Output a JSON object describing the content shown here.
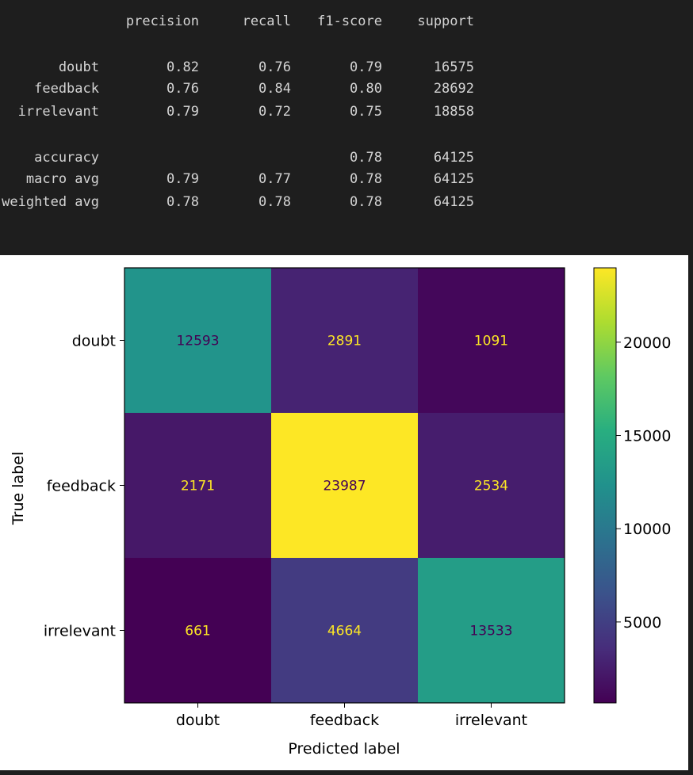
{
  "report": {
    "headers": [
      "precision",
      "recall",
      "f1-score",
      "support"
    ],
    "rows": [
      {
        "label": "doubt",
        "precision": "0.82",
        "recall": "0.76",
        "f1": "0.79",
        "support": "16575"
      },
      {
        "label": "feedback",
        "precision": "0.76",
        "recall": "0.84",
        "f1": "0.80",
        "support": "28692"
      },
      {
        "label": "irrelevant",
        "precision": "0.79",
        "recall": "0.72",
        "f1": "0.75",
        "support": "18858"
      }
    ],
    "accuracy": {
      "label": "accuracy",
      "f1": "0.78",
      "support": "64125"
    },
    "avg_rows": [
      {
        "label": "macro avg",
        "precision": "0.79",
        "recall": "0.77",
        "f1": "0.78",
        "support": "64125"
      },
      {
        "label": "weighted avg",
        "precision": "0.78",
        "recall": "0.78",
        "f1": "0.78",
        "support": "64125"
      }
    ]
  },
  "chart_data": {
    "type": "heatmap",
    "xlabel": "Predicted label",
    "ylabel": "True label",
    "x_categories": [
      "doubt",
      "feedback",
      "irrelevant"
    ],
    "y_categories": [
      "doubt",
      "feedback",
      "irrelevant"
    ],
    "values": [
      [
        12593,
        2891,
        1091
      ],
      [
        2171,
        23987,
        2534
      ],
      [
        661,
        4664,
        13533
      ]
    ],
    "colormap": "viridis",
    "colorbar": {
      "ticks": [
        "5000",
        "10000",
        "15000",
        "20000"
      ],
      "range": [
        661,
        23987
      ]
    },
    "text_colors": {
      "dark": "#440154",
      "light": "#fde725"
    }
  }
}
